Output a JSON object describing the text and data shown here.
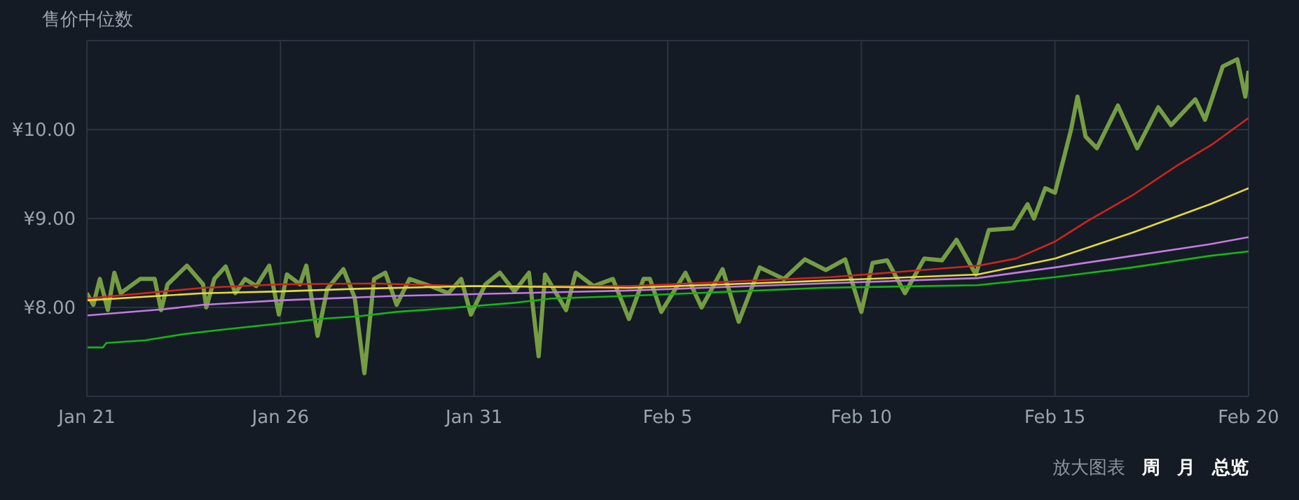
{
  "chart_data": {
    "type": "line",
    "title": "售价中位数",
    "xlim": [
      "--01-21",
      "--02-20"
    ],
    "xticks": [
      {
        "value": "--01-21",
        "label": "Jan 21"
      },
      {
        "value": "--01-26",
        "label": "Jan 26"
      },
      {
        "value": "--01-31",
        "label": "Jan 31"
      },
      {
        "value": "--02-05",
        "label": "Feb 5"
      },
      {
        "value": "--02-10",
        "label": "Feb 10"
      },
      {
        "value": "--02-15",
        "label": "Feb 15"
      },
      {
        "value": "--02-20",
        "label": "Feb 20"
      }
    ],
    "ylim": [
      7,
      11
    ],
    "yticks": [
      {
        "value": 8,
        "label": "¥8.00"
      },
      {
        "value": 9,
        "label": "¥9.00"
      },
      {
        "value": 10,
        "label": "¥10.00"
      }
    ],
    "grid": true,
    "marker": "none",
    "line_style": "solid",
    "series": [
      {
        "color": "#759d44",
        "x": [
          "--01-21T00:00",
          "--01-21T04:00",
          "--01-21T08:00",
          "--01-21T13:00",
          "--01-21T17:00",
          "--01-21T21:00",
          "--01-22T09:00",
          "--01-22T18:00",
          "--01-22T22:00",
          "--01-23T02:00",
          "--01-23T14:00",
          "--01-24T00:00",
          "--01-24T02:00",
          "--01-24T07:00",
          "--01-24T14:00",
          "--01-24T20:00",
          "--01-25T02:00",
          "--01-25T09:00",
          "--01-25T17:00",
          "--01-25T23:00",
          "--01-26T04:00",
          "--01-26T12:00",
          "--01-26T16:00",
          "--01-26T23:00",
          "--01-27T05:00",
          "--01-27T15:00",
          "--01-27T22:00",
          "--01-28T04:00",
          "--01-28T10:00",
          "--01-28T17:00",
          "--01-29T00:00",
          "--01-29T08:00",
          "--01-29T21:00",
          "--01-30T08:00",
          "--01-30T16:00",
          "--01-30T22:00",
          "--01-31T07:00",
          "--01-31T16:00",
          "--02-01T01:00",
          "--02-01T10:00",
          "--02-01T16:00",
          "--02-01T20:00",
          "--02-02T09:00",
          "--02-02T15:00",
          "--02-03T02:00",
          "--02-03T14:00",
          "--02-04T00:00",
          "--02-04T09:00",
          "--02-04T13:00",
          "--02-04T20:00",
          "--02-05T11:00",
          "--02-05T21:00",
          "--02-06T10:00",
          "--02-06T20:00",
          "--02-07T09:00",
          "--02-08T00:00",
          "--02-08T13:00",
          "--02-09T02:00",
          "--02-09T14:00",
          "--02-10T00:00",
          "--02-10T07:00",
          "--02-10T16:00",
          "--02-11T03:00",
          "--02-11T15:00",
          "--02-12T02:00",
          "--02-12T11:00",
          "--02-12T23:00",
          "--02-13T07:00",
          "--02-13T22:00",
          "--02-14T07:00",
          "--02-14T11:00",
          "--02-14T18:00",
          "--02-15T00:00",
          "--02-15T10:00",
          "--02-15T14:00",
          "--02-15T19:00",
          "--02-16T02:00",
          "--02-16T15:00",
          "--02-17T03:00",
          "--02-17T16:00",
          "--02-18T00:00",
          "--02-18T15:00",
          "--02-18T21:00",
          "--02-19T08:00",
          "--02-19T17:00",
          "--02-19T22:00",
          "--02-20T00:00"
        ],
        "values": [
          8.16,
          8.03,
          8.32,
          7.97,
          8.39,
          8.16,
          8.32,
          8.32,
          7.97,
          8.26,
          8.47,
          8.26,
          8.0,
          8.32,
          8.46,
          8.16,
          8.32,
          8.24,
          8.47,
          7.92,
          8.37,
          8.26,
          8.47,
          7.68,
          8.21,
          8.43,
          8.11,
          7.26,
          8.32,
          8.39,
          8.03,
          8.32,
          8.24,
          8.16,
          8.32,
          7.92,
          8.26,
          8.39,
          8.18,
          8.39,
          7.45,
          8.37,
          7.97,
          8.39,
          8.24,
          8.32,
          7.87,
          8.32,
          8.32,
          7.95,
          8.39,
          8.0,
          8.43,
          7.84,
          8.45,
          8.32,
          8.54,
          8.42,
          8.54,
          7.95,
          8.5,
          8.53,
          8.16,
          8.55,
          8.53,
          8.76,
          8.37,
          8.87,
          8.89,
          9.16,
          9.0,
          9.34,
          9.29,
          10.0,
          10.37,
          9.92,
          9.79,
          10.27,
          9.79,
          10.25,
          10.05,
          10.34,
          10.11,
          10.71,
          10.79,
          10.37,
          10.66
        ]
      },
      {
        "color": "#d0241f",
        "x": [
          "--01-21T00:00",
          "--01-24T00:00",
          "--01-26T00:00",
          "--01-28T10:00",
          "--01-30T19:00",
          "--02-04T00:00",
          "--02-09T05:00",
          "--02-13T01:00",
          "--02-14T00:00",
          "--02-15T00:00",
          "--02-15T20:00",
          "--02-17T00:00",
          "--02-18T05:00",
          "--02-19T02:00",
          "--02-20T00:00"
        ],
        "values": [
          8.1,
          8.22,
          8.26,
          8.27,
          8.24,
          8.24,
          8.34,
          8.47,
          8.55,
          8.74,
          8.97,
          9.26,
          9.61,
          9.84,
          10.13
        ]
      },
      {
        "color": "#e6d93a",
        "x": [
          "--01-21",
          "--01-24",
          "--01-26",
          "--01-28",
          "--01-31",
          "--02-04",
          "--02-09",
          "--02-13",
          "--02-15",
          "--02-17",
          "--02-19",
          "--02-20"
        ],
        "values": [
          8.08,
          8.16,
          8.18,
          8.21,
          8.24,
          8.22,
          8.3,
          8.37,
          8.55,
          8.84,
          9.16,
          9.34
        ]
      },
      {
        "color": "#c47ae0",
        "x": [
          "--01-21",
          "--01-23",
          "--01-24",
          "--01-26",
          "--01-29",
          "--02-01",
          "--02-04",
          "--02-09",
          "--02-13",
          "--02-15",
          "--02-17",
          "--02-19",
          "--02-20"
        ],
        "values": [
          7.91,
          7.98,
          8.03,
          8.08,
          8.13,
          8.16,
          8.19,
          8.27,
          8.33,
          8.45,
          8.58,
          8.71,
          8.79
        ]
      },
      {
        "color": "#16b516",
        "x": [
          "--01-21T00:00",
          "--01-21T10:00",
          "--01-21T12:00",
          "--01-22T12:00",
          "--01-23T12:00",
          "--01-24T12:00",
          "--01-26T00:00",
          "--01-27T00:00",
          "--01-28T00:00",
          "--01-29T00:00",
          "--01-30T00:00",
          "--02-01T00:00",
          "--02-02T00:00",
          "--02-04T00:00",
          "--02-09T00:00",
          "--02-13T00:00",
          "--02-15T00:00",
          "--02-17T00:00",
          "--02-19T00:00",
          "--02-20T00:00"
        ],
        "values": [
          7.55,
          7.55,
          7.6,
          7.63,
          7.7,
          7.75,
          7.82,
          7.87,
          7.9,
          7.95,
          7.98,
          8.05,
          8.1,
          8.13,
          8.22,
          8.25,
          8.34,
          8.45,
          8.58,
          8.63
        ]
      }
    ],
    "annotations": [
      "放大图表",
      "周",
      "月",
      "总览"
    ]
  }
}
